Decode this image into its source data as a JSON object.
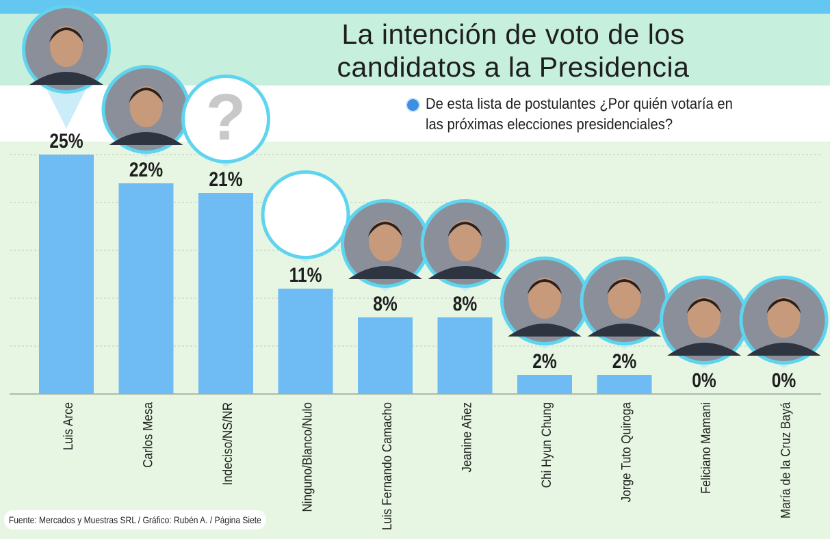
{
  "title": {
    "line1": "La intención de voto de los",
    "line2": "candidatos a la Presidencia"
  },
  "subtitle": "De esta lista de postulantes ¿Por quién votaría en las próximas elecciones presidenciales?",
  "source": "Fuente: Mercados y Muestras SRL / Gráfico: Rubén A. / Página Siete",
  "colors": {
    "bar": "#6fbcf4",
    "ring": "#5fd4ef",
    "background": "#e6f6e2",
    "grid": "#bfcabc",
    "text": "#1e1e1e"
  },
  "chart_data": {
    "type": "bar",
    "title": "La intención de voto de los candidatos a la Presidencia",
    "xlabel": "",
    "ylabel": "",
    "ylim": [
      0,
      25
    ],
    "grid": true,
    "categories": [
      "Luis Arce",
      "Carlos Mesa",
      "Indeciso/NS/NR",
      "Ninguno/Blanco/Nulo",
      "Luis Fernando Camacho",
      "Jeanine Añez",
      "Chi Hyun Chung",
      "Jorge Tuto Quiroga",
      "Feliciano Mamani",
      "María de la Cruz Bayá"
    ],
    "values": [
      25,
      22,
      21,
      11,
      8,
      8,
      2,
      2,
      0,
      0
    ],
    "labels": [
      "25%",
      "22%",
      "21%",
      "11%",
      "8%",
      "8%",
      "2%",
      "2%",
      "0%",
      "0%"
    ],
    "markers": [
      {
        "kind": "photo",
        "icon": "luis-arce-portrait"
      },
      {
        "kind": "photo",
        "icon": "carlos-mesa-portrait"
      },
      {
        "kind": "question",
        "icon": "question-mark-icon",
        "text": "?"
      },
      {
        "kind": "empty",
        "icon": "empty-circle-icon"
      },
      {
        "kind": "photo",
        "icon": "luis-fernando-camacho-portrait"
      },
      {
        "kind": "photo",
        "icon": "jeanine-anez-portrait"
      },
      {
        "kind": "photo",
        "icon": "chi-hyun-chung-portrait"
      },
      {
        "kind": "photo",
        "icon": "jorge-tuto-quiroga-portrait"
      },
      {
        "kind": "photo",
        "icon": "feliciano-mamani-portrait"
      },
      {
        "kind": "photo",
        "icon": "maria-de-la-cruz-baya-portrait"
      }
    ]
  }
}
